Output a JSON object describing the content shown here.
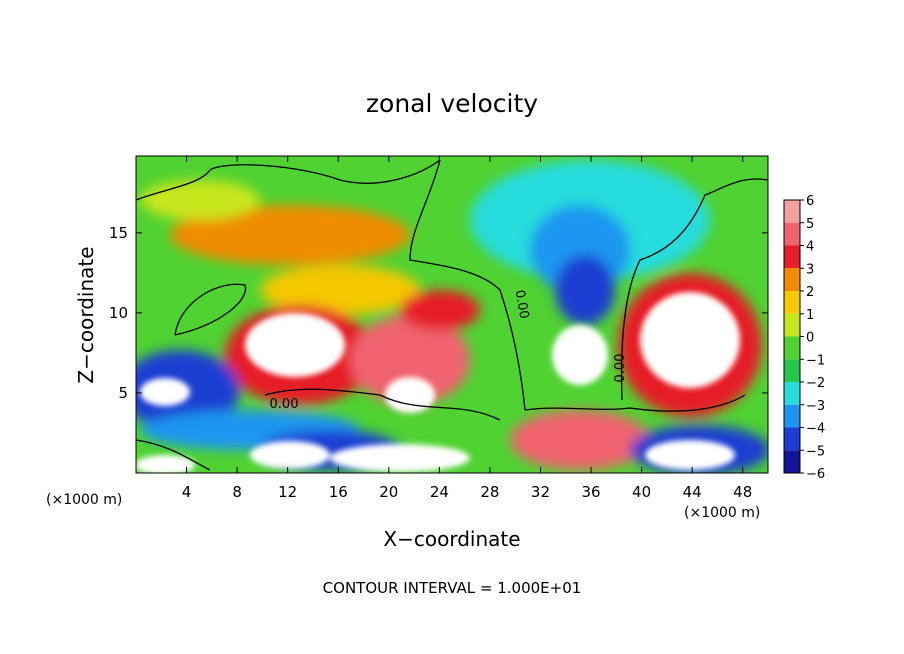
{
  "chart_data": {
    "type": "heatmap",
    "title": "zonal velocity",
    "xlabel": "X−coordinate",
    "ylabel": "Z−coordinate",
    "x_unit_left": "(×1000 m)",
    "x_unit_right": "(×1000 m)",
    "xlim": [
      0,
      50
    ],
    "ylim": [
      0,
      19.8
    ],
    "xticks": [
      4,
      8,
      12,
      16,
      20,
      24,
      28,
      32,
      36,
      40,
      44,
      48
    ],
    "yticks": [
      5,
      10,
      15
    ],
    "colorbar": {
      "levels": [
        6,
        5,
        4,
        3,
        2,
        1,
        0,
        -1,
        -2,
        -3,
        -4,
        -5,
        -6
      ],
      "labels": [
        "6",
        "5",
        "4",
        "3",
        "2",
        "1",
        "0",
        "−1",
        "−2",
        "−3",
        "−4",
        "−5",
        "−6"
      ],
      "colors": [
        "#f2a0a0",
        "#f0646e",
        "#e61e28",
        "#f08c00",
        "#f5c800",
        "#c8e61e",
        "#50d232",
        "#28c850",
        "#28dcdc",
        "#1e96f0",
        "#1e3cd2",
        "#14149a",
        "#7814a0"
      ]
    },
    "contour_labels": [
      "0.00",
      "0.00",
      "0.00"
    ],
    "note": "CONTOUR INTERVAL = 1.000E+01",
    "grid": false,
    "legend_position": "right"
  }
}
